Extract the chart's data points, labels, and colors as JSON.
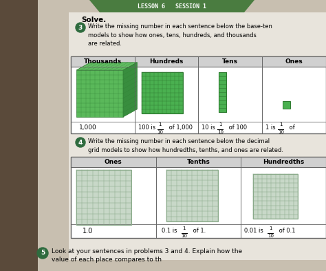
{
  "bg_left_color": "#5a4a3a",
  "bg_right_color": "#c8bfb0",
  "paper_color": "#e8e4dc",
  "header_bg": "#4a7c40",
  "header_text": "LESSON 6   SESSION 1",
  "header_text_color": "#ffffff",
  "solve_text": "Solve.",
  "circle_color": "#2e6b3e",
  "q3_text": "Write the missing number in each sentence below the base-ten\nmodels to show how ones, tens, hundreds, and thousands\nare related.",
  "q4_text": "Write the missing number in each sentence below the decimal\ngrid models to show how hundredths, tenths, and ones are related.",
  "bottom_text": "Look at your sentences in problems 3 and 4. Explain how the\nvalue of each place compares to th",
  "table1_headers": [
    "Thousands",
    "Hundreds",
    "Tens",
    "Ones"
  ],
  "table2_headers": [
    "Ones",
    "Tenths",
    "Hundredths"
  ],
  "cube_front": "#5ab85a",
  "cube_top": "#6ecc6e",
  "cube_right": "#3a9040",
  "cube_grid": "#2e7a30",
  "flat_grid_color": "#4ab050",
  "flat_grid_ec": "#2e7a30",
  "grid2_fc": "#c8d8c8",
  "grid2_ec": "#8aaa8a",
  "table_border": "#666666",
  "table_header_bg": "#d0d0d0",
  "caption_color": "#111111"
}
